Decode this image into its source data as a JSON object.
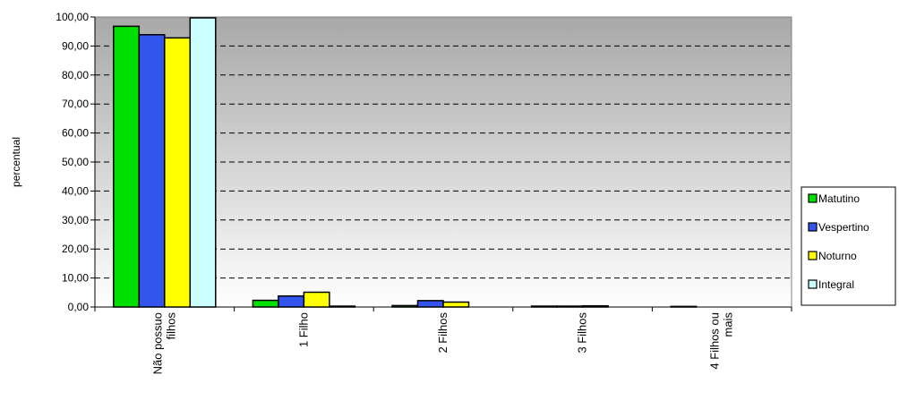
{
  "chart_data": {
    "type": "bar",
    "ylabel": "percentual",
    "ylim": [
      0,
      100
    ],
    "yticks": [
      "0,00",
      "10,00",
      "20,00",
      "30,00",
      "40,00",
      "50,00",
      "60,00",
      "70,00",
      "80,00",
      "90,00",
      "100,00"
    ],
    "grid": "horizontal dashed",
    "legend_position": "right",
    "categories": [
      [
        "Não possuo",
        "filhos"
      ],
      [
        "1 Filho"
      ],
      [
        "2 Filhos"
      ],
      [
        "3 Filhos"
      ],
      [
        "4 Filhos ou",
        "mais"
      ]
    ],
    "series": [
      {
        "name": "Matutino",
        "color": "#00e000",
        "values": [
          96.8,
          2.3,
          0.5,
          0.3,
          0.2
        ]
      },
      {
        "name": "Vespertino",
        "color": "#3355ee",
        "values": [
          93.9,
          3.8,
          2.2,
          0.3,
          0.0
        ]
      },
      {
        "name": "Noturno",
        "color": "#ffff00",
        "values": [
          92.8,
          5.1,
          1.7,
          0.4,
          0.0
        ]
      },
      {
        "name": "Integral",
        "color": "#ccffff",
        "values": [
          99.7,
          0.3,
          0.0,
          0.0,
          0.0
        ]
      }
    ]
  }
}
